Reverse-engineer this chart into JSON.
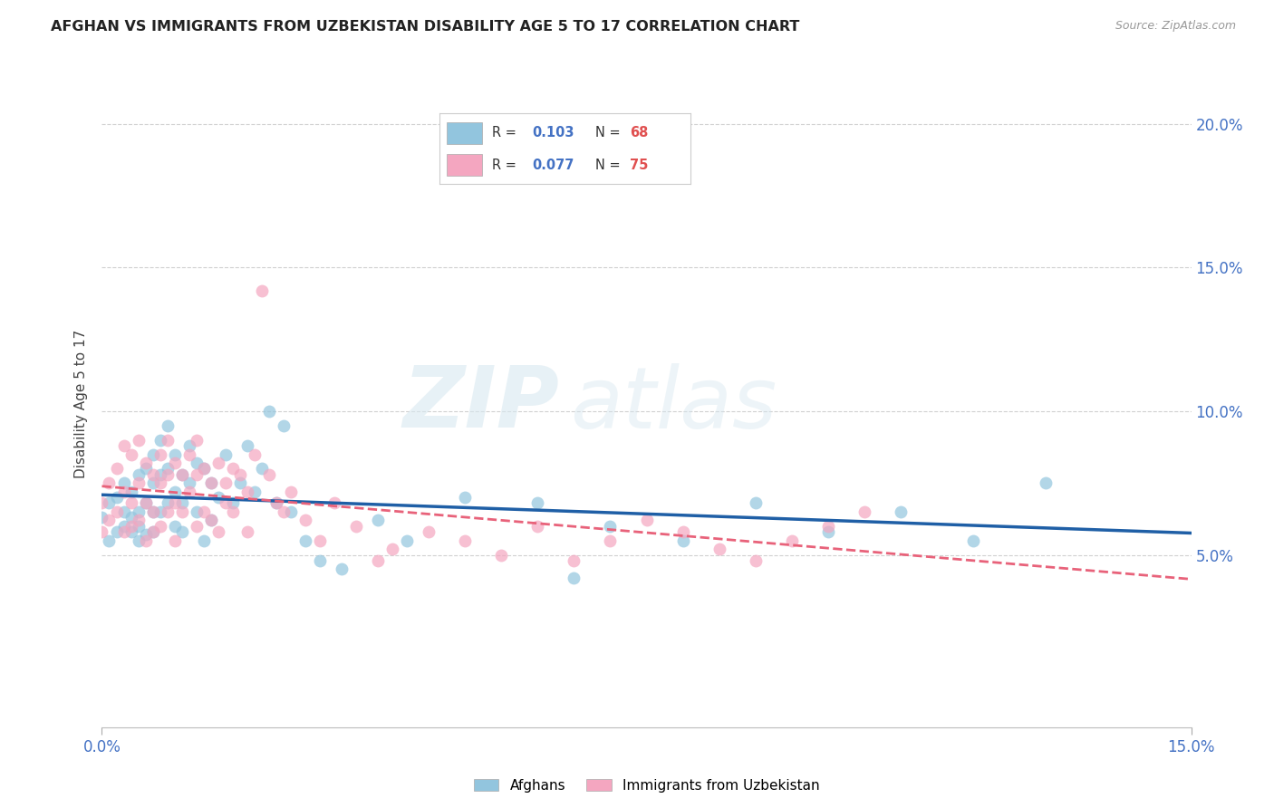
{
  "title": "AFGHAN VS IMMIGRANTS FROM UZBEKISTAN DISABILITY AGE 5 TO 17 CORRELATION CHART",
  "source": "Source: ZipAtlas.com",
  "ylabel": "Disability Age 5 to 17",
  "xlim": [
    0.0,
    0.15
  ],
  "ylim": [
    -0.01,
    0.215
  ],
  "ytick_values": [
    0.0,
    0.05,
    0.1,
    0.15,
    0.2
  ],
  "legend_label1": "Afghans",
  "legend_label2": "Immigrants from Uzbekistan",
  "legend_R1": "0.103",
  "legend_N1": "68",
  "legend_R2": "0.077",
  "legend_N2": "75",
  "color_blue": "#92c5de",
  "color_pink": "#f4a6c0",
  "color_blue_line": "#1f5fa6",
  "color_pink_line": "#e8627a",
  "watermark_zip": "ZIP",
  "watermark_atlas": "atlas",
  "afghans_x": [
    0.0,
    0.001,
    0.001,
    0.002,
    0.002,
    0.003,
    0.003,
    0.003,
    0.004,
    0.004,
    0.004,
    0.005,
    0.005,
    0.005,
    0.005,
    0.006,
    0.006,
    0.006,
    0.007,
    0.007,
    0.007,
    0.007,
    0.008,
    0.008,
    0.008,
    0.009,
    0.009,
    0.009,
    0.01,
    0.01,
    0.01,
    0.011,
    0.011,
    0.011,
    0.012,
    0.012,
    0.013,
    0.013,
    0.014,
    0.014,
    0.015,
    0.015,
    0.016,
    0.017,
    0.018,
    0.019,
    0.02,
    0.021,
    0.022,
    0.023,
    0.024,
    0.025,
    0.026,
    0.028,
    0.03,
    0.033,
    0.038,
    0.042,
    0.05,
    0.06,
    0.065,
    0.07,
    0.08,
    0.09,
    0.1,
    0.11,
    0.12,
    0.13
  ],
  "afghans_y": [
    0.063,
    0.068,
    0.055,
    0.07,
    0.058,
    0.065,
    0.06,
    0.075,
    0.063,
    0.058,
    0.072,
    0.078,
    0.065,
    0.06,
    0.055,
    0.08,
    0.068,
    0.057,
    0.085,
    0.075,
    0.065,
    0.058,
    0.09,
    0.078,
    0.065,
    0.095,
    0.08,
    0.068,
    0.085,
    0.072,
    0.06,
    0.078,
    0.068,
    0.058,
    0.088,
    0.075,
    0.082,
    0.065,
    0.08,
    0.055,
    0.075,
    0.062,
    0.07,
    0.085,
    0.068,
    0.075,
    0.088,
    0.072,
    0.08,
    0.1,
    0.068,
    0.095,
    0.065,
    0.055,
    0.048,
    0.045,
    0.062,
    0.055,
    0.07,
    0.068,
    0.042,
    0.06,
    0.055,
    0.068,
    0.058,
    0.065,
    0.055,
    0.075
  ],
  "uzbek_x": [
    0.0,
    0.0,
    0.001,
    0.001,
    0.002,
    0.002,
    0.003,
    0.003,
    0.003,
    0.004,
    0.004,
    0.004,
    0.005,
    0.005,
    0.005,
    0.006,
    0.006,
    0.006,
    0.007,
    0.007,
    0.007,
    0.008,
    0.008,
    0.008,
    0.009,
    0.009,
    0.009,
    0.01,
    0.01,
    0.01,
    0.011,
    0.011,
    0.012,
    0.012,
    0.013,
    0.013,
    0.013,
    0.014,
    0.014,
    0.015,
    0.015,
    0.016,
    0.016,
    0.017,
    0.017,
    0.018,
    0.018,
    0.019,
    0.02,
    0.02,
    0.021,
    0.022,
    0.023,
    0.024,
    0.025,
    0.026,
    0.028,
    0.03,
    0.032,
    0.035,
    0.038,
    0.04,
    0.045,
    0.05,
    0.055,
    0.06,
    0.065,
    0.07,
    0.075,
    0.08,
    0.085,
    0.09,
    0.095,
    0.1,
    0.105
  ],
  "uzbek_y": [
    0.068,
    0.058,
    0.075,
    0.062,
    0.08,
    0.065,
    0.088,
    0.072,
    0.058,
    0.085,
    0.068,
    0.06,
    0.09,
    0.075,
    0.062,
    0.082,
    0.068,
    0.055,
    0.078,
    0.065,
    0.058,
    0.085,
    0.075,
    0.06,
    0.09,
    0.078,
    0.065,
    0.082,
    0.068,
    0.055,
    0.078,
    0.065,
    0.085,
    0.072,
    0.09,
    0.078,
    0.06,
    0.08,
    0.065,
    0.075,
    0.062,
    0.082,
    0.058,
    0.075,
    0.068,
    0.08,
    0.065,
    0.078,
    0.072,
    0.058,
    0.085,
    0.142,
    0.078,
    0.068,
    0.065,
    0.072,
    0.062,
    0.055,
    0.068,
    0.06,
    0.048,
    0.052,
    0.058,
    0.055,
    0.05,
    0.06,
    0.048,
    0.055,
    0.062,
    0.058,
    0.052,
    0.048,
    0.055,
    0.06,
    0.065
  ]
}
